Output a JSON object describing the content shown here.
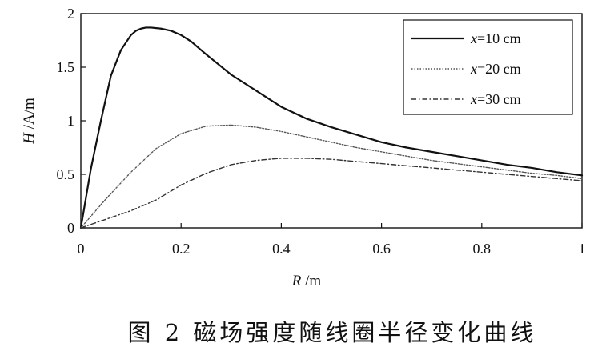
{
  "chart_data": {
    "type": "line",
    "title": "",
    "xlabel": "R /m",
    "ylabel": "H /A/m",
    "xlabel_var": "R",
    "xlabel_unit": " /m",
    "ylabel_var": "H",
    "ylabel_unit": " /A/m",
    "xlim": [
      0,
      1
    ],
    "ylim": [
      0,
      2
    ],
    "xticks": [
      0,
      0.2,
      0.4,
      0.6,
      0.8,
      1
    ],
    "xtick_labels": [
      "0",
      "0.2",
      "0.4",
      "0.6",
      "0.8",
      "1"
    ],
    "yticks": [
      0,
      0.5,
      1,
      1.5,
      2
    ],
    "ytick_labels": [
      "0",
      "0.5",
      "1",
      "1.5",
      "2"
    ],
    "grid": false,
    "legend_position": "top-right",
    "series": [
      {
        "name": "x=10 cm",
        "name_var": "x",
        "name_rest": "=10 cm",
        "style": "solid",
        "color": "#111111",
        "x": [
          0,
          0.02,
          0.04,
          0.06,
          0.08,
          0.1,
          0.11,
          0.12,
          0.13,
          0.14,
          0.16,
          0.18,
          0.2,
          0.22,
          0.25,
          0.3,
          0.35,
          0.4,
          0.45,
          0.5,
          0.55,
          0.6,
          0.65,
          0.7,
          0.75,
          0.8,
          0.85,
          0.9,
          0.95,
          1.0
        ],
        "y": [
          0,
          0.55,
          1.0,
          1.42,
          1.66,
          1.8,
          1.84,
          1.86,
          1.87,
          1.87,
          1.86,
          1.84,
          1.8,
          1.74,
          1.62,
          1.43,
          1.28,
          1.13,
          1.02,
          0.94,
          0.87,
          0.8,
          0.75,
          0.71,
          0.67,
          0.63,
          0.59,
          0.56,
          0.52,
          0.49
        ]
      },
      {
        "name": "x=20 cm",
        "name_var": "x",
        "name_rest": "=20 cm",
        "style": "dotted",
        "color": "#555555",
        "x": [
          0,
          0.05,
          0.1,
          0.15,
          0.2,
          0.25,
          0.3,
          0.35,
          0.4,
          0.45,
          0.5,
          0.55,
          0.6,
          0.65,
          0.7,
          0.75,
          0.8,
          0.85,
          0.9,
          0.95,
          1.0
        ],
        "y": [
          0,
          0.27,
          0.52,
          0.74,
          0.88,
          0.95,
          0.96,
          0.94,
          0.9,
          0.85,
          0.8,
          0.75,
          0.71,
          0.67,
          0.63,
          0.6,
          0.57,
          0.54,
          0.51,
          0.49,
          0.46
        ]
      },
      {
        "name": "x=30 cm",
        "name_var": "x",
        "name_rest": "=30 cm",
        "style": "dashdot",
        "color": "#333333",
        "x": [
          0,
          0.05,
          0.1,
          0.15,
          0.2,
          0.25,
          0.3,
          0.35,
          0.4,
          0.45,
          0.5,
          0.55,
          0.6,
          0.65,
          0.7,
          0.75,
          0.8,
          0.85,
          0.9,
          0.95,
          1.0
        ],
        "y": [
          0,
          0.08,
          0.16,
          0.26,
          0.4,
          0.51,
          0.59,
          0.63,
          0.65,
          0.65,
          0.64,
          0.62,
          0.6,
          0.58,
          0.56,
          0.54,
          0.52,
          0.5,
          0.48,
          0.46,
          0.44
        ]
      }
    ]
  },
  "caption": {
    "text": "图 2  磁场强度随线圈半径变化曲线"
  }
}
